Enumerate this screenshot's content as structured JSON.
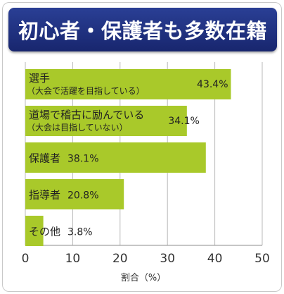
{
  "title": "初心者・保護者も多数在籍",
  "colors": {
    "bar": "#a9c92a",
    "header": "#1f2f80",
    "grid": "#b9b9b9"
  },
  "chart_data": {
    "type": "bar",
    "orientation": "horizontal",
    "title": "初心者・保護者も多数在籍",
    "xlabel": "割合（%）",
    "ylabel": "",
    "xlim": [
      0,
      50
    ],
    "xticks": [
      "0",
      "10",
      "20",
      "30",
      "40",
      "50"
    ],
    "grid": true,
    "categories": [
      {
        "label": "選手",
        "sub": "（大会で活躍を目指している）"
      },
      {
        "label": "道場で稽古に励んでいる",
        "sub": "（大会は目指していない）"
      },
      {
        "label": "保護者",
        "sub": ""
      },
      {
        "label": "指導者",
        "sub": ""
      },
      {
        "label": "その他",
        "sub": ""
      }
    ],
    "values": [
      43.4,
      34.1,
      38.1,
      20.8,
      3.8
    ],
    "value_labels": [
      "43.4%",
      "34.1%",
      "38.1%",
      "20.8%",
      "3.8%"
    ]
  }
}
